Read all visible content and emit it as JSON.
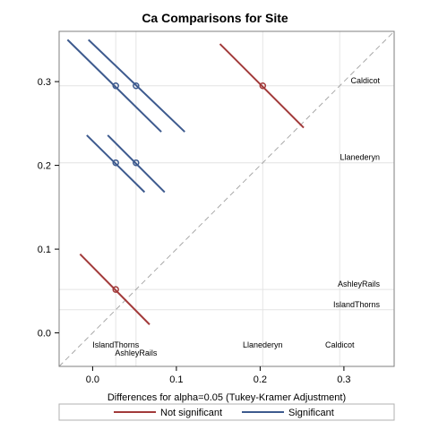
{
  "chart_data": {
    "type": "diffogram",
    "title": "Ca Comparisons for Site",
    "subtitle": "Differences for alpha=0.05 (Tukey-Kramer Adjustment)",
    "xlim": [
      -0.04,
      0.36
    ],
    "ylim": [
      -0.04,
      0.36
    ],
    "x_ticks": [
      "0.0",
      "0.1",
      "0.2",
      "0.3"
    ],
    "x_tick_values": [
      0,
      0.1,
      0.2,
      0.3
    ],
    "y_ticks": [
      "0.0",
      "0.1",
      "0.2",
      "0.3"
    ],
    "y_tick_values": [
      0,
      0.1,
      0.2,
      0.3
    ],
    "grid": true,
    "colors": {
      "not_significant": "#a23a3a",
      "significant": "#3d5a8e",
      "diagonal": "#a8a8a8",
      "grid": "#e4e4e4",
      "frame": "#7f7f7f"
    },
    "levels": [
      {
        "name": "IslandThorns",
        "mean": 0.0276
      },
      {
        "name": "AshleyRails",
        "mean": 0.0518
      },
      {
        "name": "Llanederyn",
        "mean": 0.2031
      },
      {
        "name": "Caldicot",
        "mean": 0.295
      }
    ],
    "comparisons": [
      {
        "x": 0.0518,
        "y": 0.295,
        "x1": -0.005,
        "y1": 0.35,
        "x2": 0.11,
        "y2": 0.24,
        "significant": true
      },
      {
        "x": 0.0276,
        "y": 0.295,
        "x1": -0.03,
        "y1": 0.35,
        "x2": 0.082,
        "y2": 0.24,
        "significant": true
      },
      {
        "x": 0.2031,
        "y": 0.295,
        "x1": 0.152,
        "y1": 0.345,
        "x2": 0.252,
        "y2": 0.245,
        "significant": false
      },
      {
        "x": 0.0518,
        "y": 0.2031,
        "x1": 0.018,
        "y1": 0.236,
        "x2": 0.086,
        "y2": 0.168,
        "significant": true
      },
      {
        "x": 0.0276,
        "y": 0.2031,
        "x1": -0.007,
        "y1": 0.236,
        "x2": 0.062,
        "y2": 0.168,
        "significant": true
      },
      {
        "x": 0.0276,
        "y": 0.0518,
        "x1": -0.015,
        "y1": 0.094,
        "x2": 0.068,
        "y2": 0.01,
        "significant": false
      }
    ],
    "legend": {
      "placement": "bottom",
      "items": [
        {
          "label": "Not significant",
          "key": "not_significant"
        },
        {
          "label": "Significant",
          "key": "significant"
        }
      ]
    }
  }
}
